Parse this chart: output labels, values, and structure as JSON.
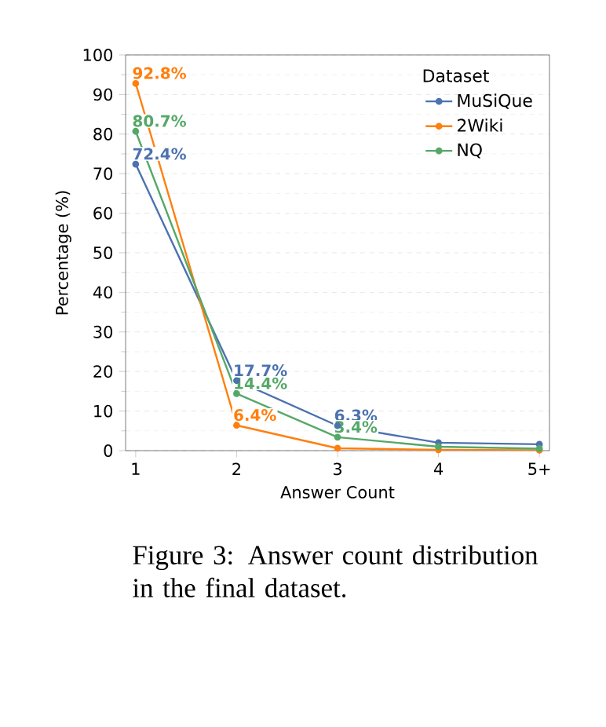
{
  "chart_data": {
    "type": "line",
    "xlabel": "Answer Count",
    "ylabel": "Percentage (%)",
    "legend_title": "Dataset",
    "categories": [
      "1",
      "2",
      "3",
      "4",
      "5+"
    ],
    "series": [
      {
        "name": "MuSiQue",
        "color": "#4c72b0",
        "values": [
          72.4,
          17.7,
          6.3,
          2.0,
          1.6
        ],
        "value_labels": [
          "72.4%",
          "17.7%",
          "6.3%",
          null,
          null
        ]
      },
      {
        "name": "2Wiki",
        "color": "#ff7f0e",
        "values": [
          92.8,
          6.4,
          0.6,
          0.2,
          0.1
        ],
        "value_labels": [
          "92.8%",
          "6.4%",
          null,
          null,
          null
        ]
      },
      {
        "name": "NQ",
        "color": "#55a868",
        "values": [
          80.7,
          14.4,
          3.4,
          1.0,
          0.5
        ],
        "value_labels": [
          "80.7%",
          "14.4%",
          "3.4%",
          null,
          null
        ]
      }
    ],
    "ylim": [
      0,
      100
    ],
    "yticks": [
      0,
      10,
      20,
      30,
      40,
      50,
      60,
      70,
      80,
      90,
      100
    ],
    "grid": "y",
    "legend": "top right",
    "marker": "circle",
    "line_style": "solid",
    "annotations": [
      "Figure 3: Answer count distribution in the final dataset."
    ]
  }
}
